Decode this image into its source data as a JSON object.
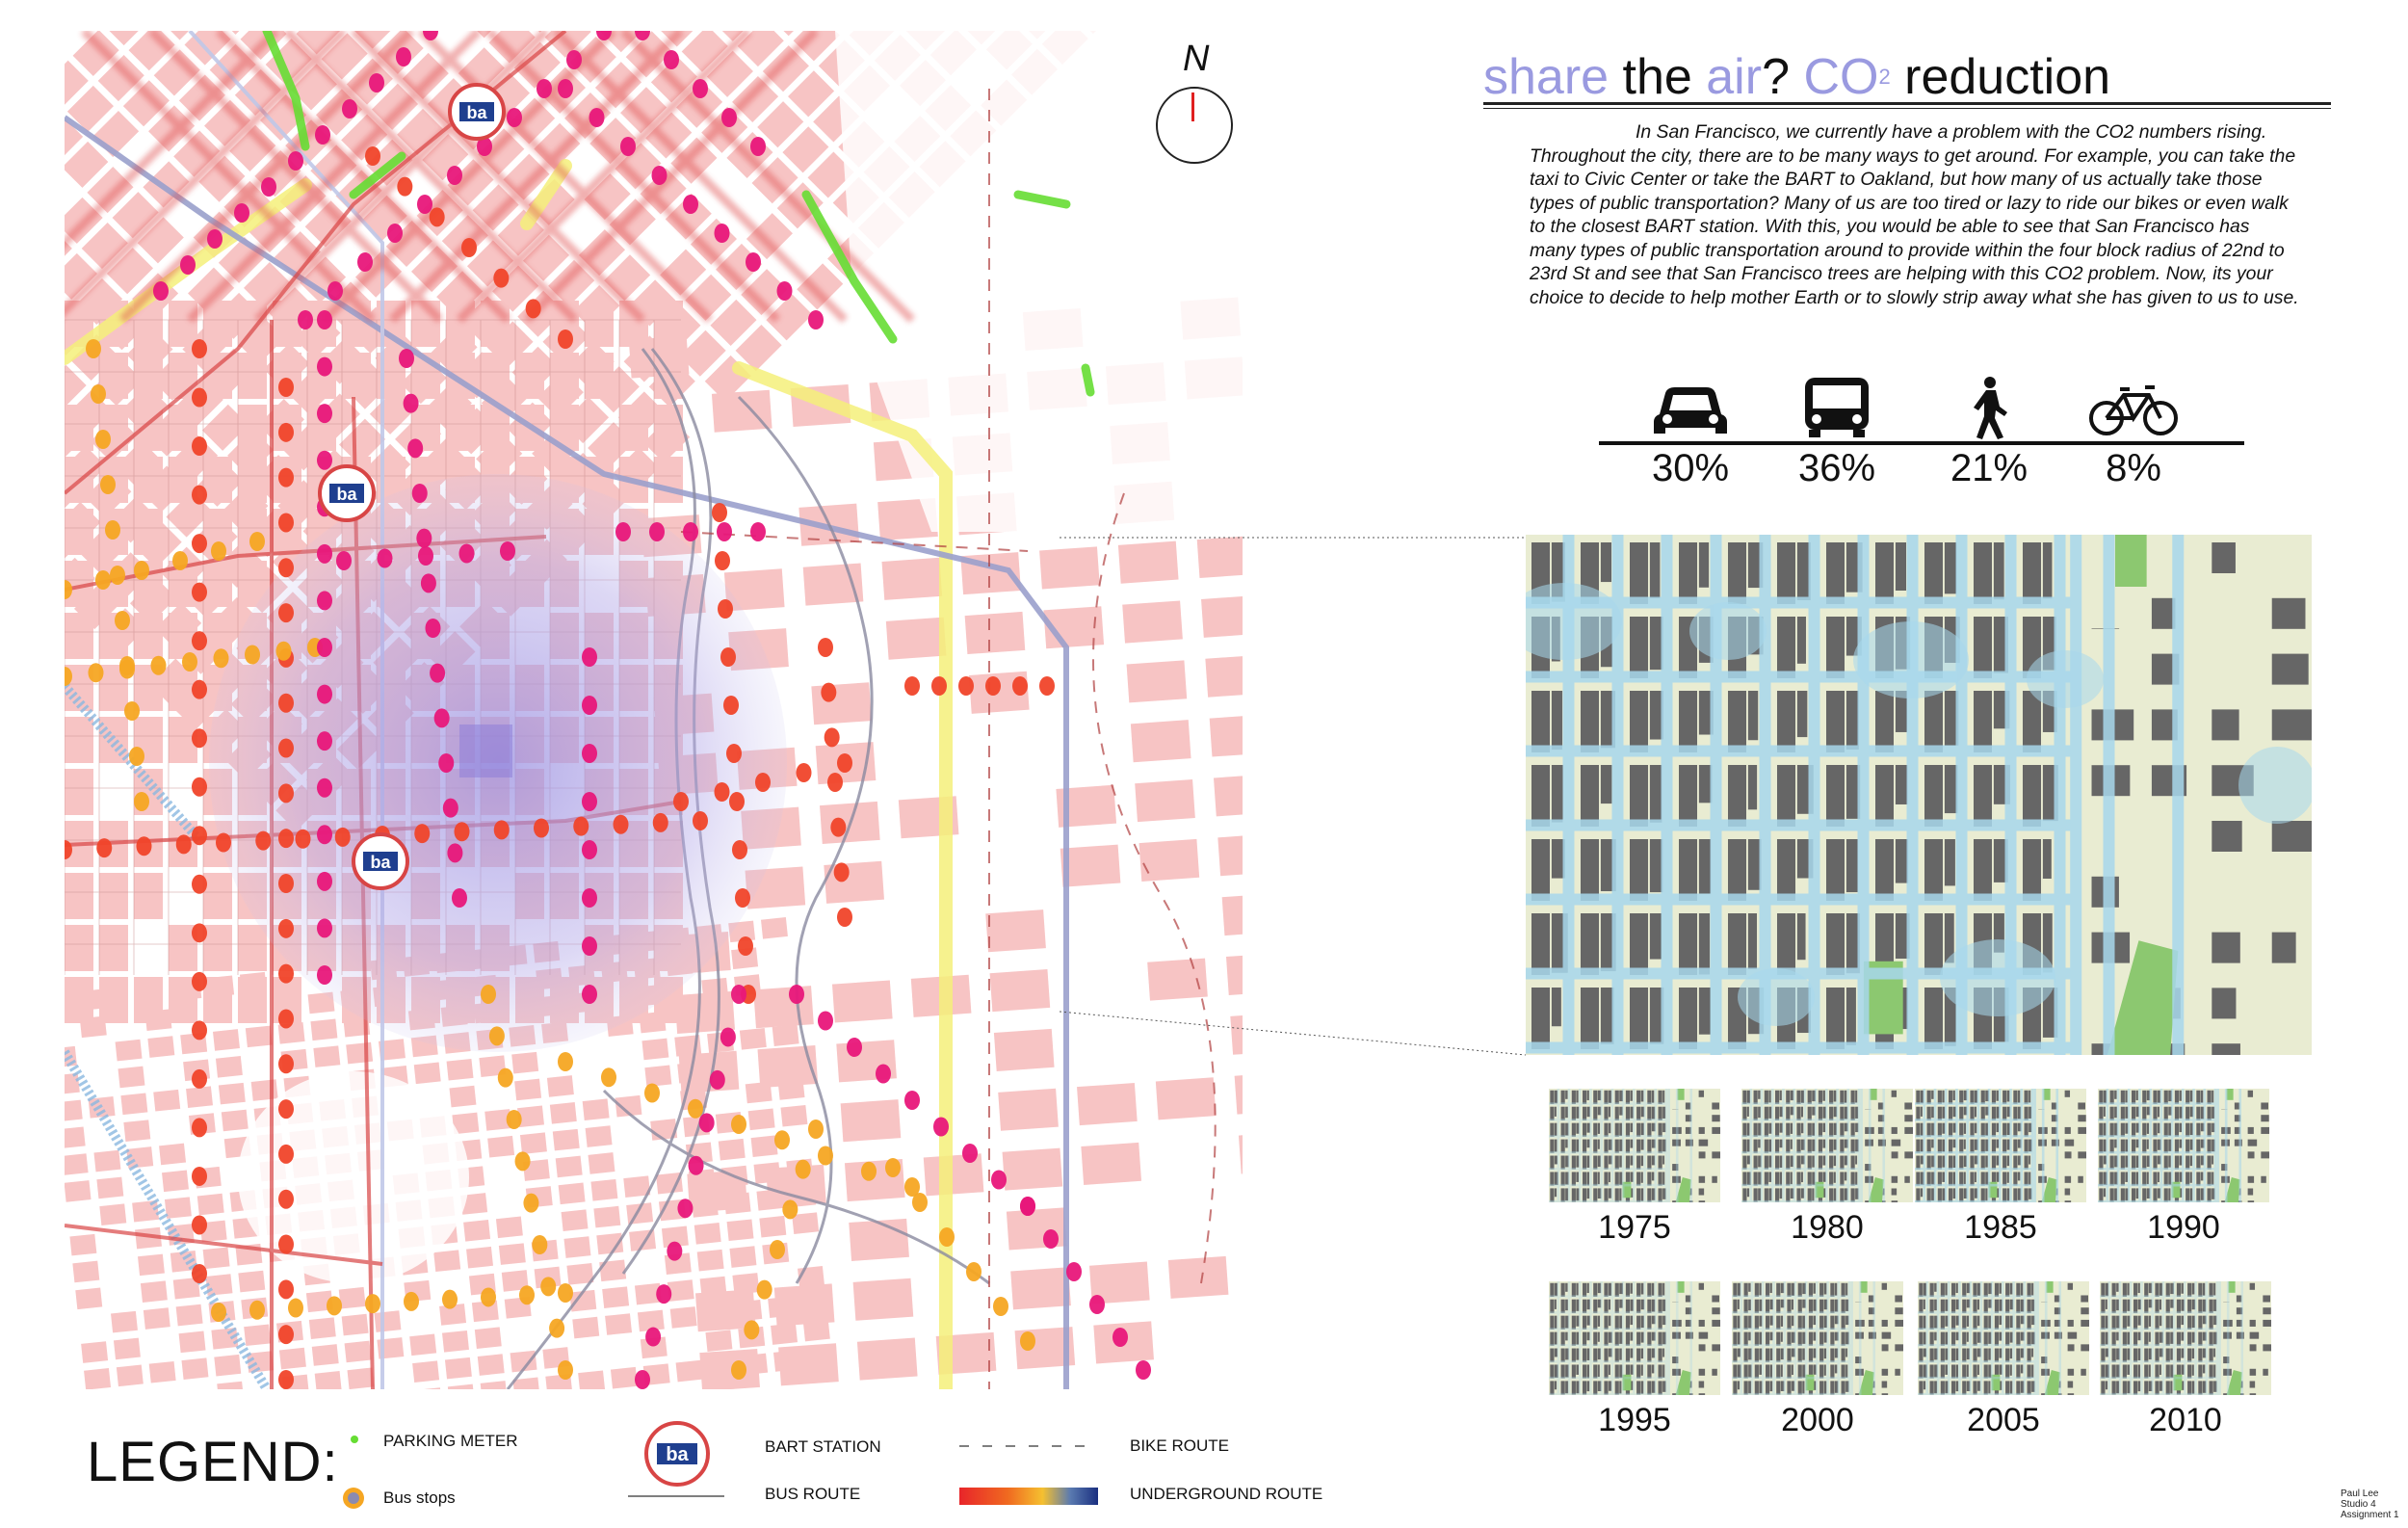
{
  "north_label": "N",
  "title": {
    "part1": "share",
    "part2": " the ",
    "part3": "air",
    "part4": "? ",
    "part5": "CO",
    "part5_sup": "2",
    "part6": " reduction"
  },
  "intro_text": "In San Francisco, we currently have a problem with the CO2 numbers rising. Throughout the city, there are to be many ways to get around. For example, you can take the taxi to Civic Center or take the BART to Oakland, but how many of us actually take those types of public transportation? Many of us are too tired or lazy to ride our bikes or even walk to the closest BART station. With this, you would be able to see that San Francisco has many types of public transportation around to provide within the four block radius of 22nd to 23rd St and see that San Francisco trees are helping with this CO2 problem. Now, its your choice to decide to help mother Earth or to slowly strip away what she has given to us to use.",
  "modes": [
    {
      "icon": "car-icon",
      "percent": "30%",
      "value": 30
    },
    {
      "icon": "bus-icon",
      "percent": "36%",
      "value": 36
    },
    {
      "icon": "pedestrian-icon",
      "percent": "21%",
      "value": 21
    },
    {
      "icon": "bicycle-icon",
      "percent": "8%",
      "value": 8
    }
  ],
  "years": [
    "1975",
    "1980",
    "1985",
    "1990",
    "1995",
    "2000",
    "2005",
    "2010"
  ],
  "legend": {
    "title": "LEGEND:",
    "parking_meter": "PARKING METER",
    "bus_stops": "Bus stops",
    "bart_station": "BART STATION",
    "bus_route": "BUS ROUTE",
    "bike_route": "BIKE ROUTE",
    "underground_route": "UNDERGROUND ROUTE"
  },
  "bart_logo_text": "ba",
  "credit": {
    "line1": "Paul Lee",
    "line2": "Studio 4",
    "line3": "Assignment 1"
  },
  "colors": {
    "block_pink": "#f7c4c4",
    "route_red": "#d84545",
    "stop_magenta": "#e8177a",
    "stop_red": "#f0452a",
    "stop_orange": "#f5a623",
    "park_green": "#66dd33",
    "bart_line": "#9aa0cc",
    "yellow_line": "#f5f07a",
    "radius_purple": "#b3a8e8",
    "co2_blue": "#a8d8ec",
    "building_gray": "#666666",
    "land_cream": "#e9ecd2",
    "park_green_zoom": "#8cc870"
  }
}
